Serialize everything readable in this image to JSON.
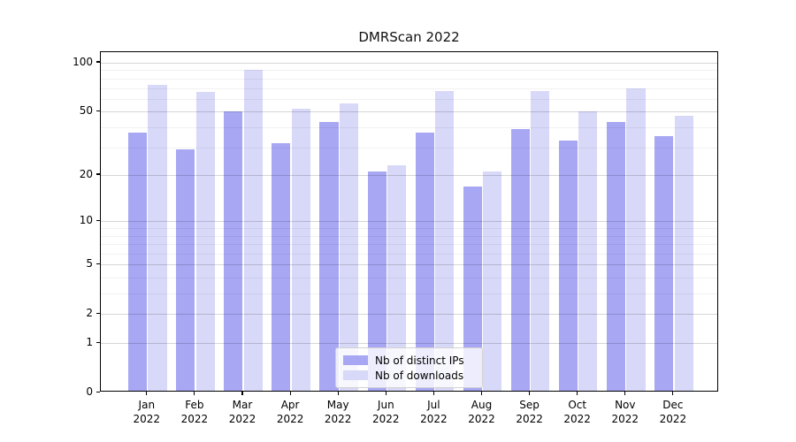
{
  "chart_data": {
    "type": "bar",
    "title": "DMRScan 2022",
    "categories": [
      "Jan",
      "Feb",
      "Mar",
      "Apr",
      "May",
      "Jun",
      "Jul",
      "Aug",
      "Sep",
      "Oct",
      "Nov",
      "Dec"
    ],
    "category_year": "2022",
    "series": [
      {
        "name": "Nb of distinct IPs",
        "color": "#a7a7f4",
        "values": [
          37,
          29,
          50,
          32,
          43,
          21,
          37,
          17,
          39,
          33,
          43,
          35
        ]
      },
      {
        "name": "Nb of downloads",
        "color": "#d8d8f8",
        "values": [
          73,
          66,
          90,
          52,
          56,
          23,
          67,
          21,
          67,
          50,
          70,
          47
        ]
      }
    ],
    "xlabel": "",
    "ylabel": "",
    "yscale": "log1p",
    "ylim": [
      0,
      115
    ],
    "y_ticks": [
      100,
      50,
      20,
      10,
      5,
      2,
      1,
      0
    ],
    "y_tick_labels": [
      "100",
      "50",
      "20",
      "10",
      "5",
      "2",
      "1",
      "0"
    ],
    "y_minor_gridlines": [
      3,
      4,
      6,
      7,
      8,
      9,
      30,
      40,
      60,
      70,
      80,
      90
    ],
    "grid": "on",
    "legend_position": "lower center"
  },
  "colors": {
    "spine": "#000000",
    "major_grid": "rgba(0,0,0,0.16)",
    "minor_grid": "rgba(0,0,0,0.055)",
    "background": "#ffffff"
  }
}
